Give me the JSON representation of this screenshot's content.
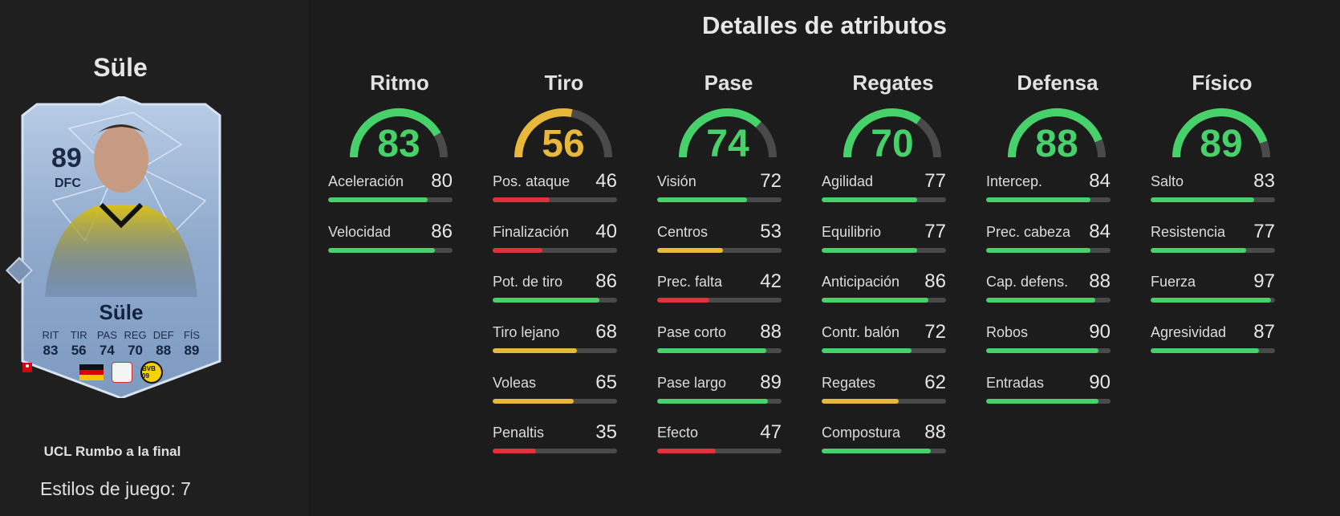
{
  "player": {
    "name": "Süle",
    "card_name": "Süle",
    "rating": "89",
    "position": "DFC",
    "version": "UCL Rumbo a la final",
    "playstyles": "Estilos de juego: 7",
    "card_stats": [
      {
        "label": "RIT",
        "value": "83"
      },
      {
        "label": "TIR",
        "value": "56"
      },
      {
        "label": "PAS",
        "value": "74"
      },
      {
        "label": "REG",
        "value": "70"
      },
      {
        "label": "DEF",
        "value": "88"
      },
      {
        "label": "FÍS",
        "value": "89"
      }
    ],
    "club_badge_text": "BVB 09"
  },
  "title": "Detalles de atributos",
  "colors": {
    "green": "#47d16b",
    "yellow": "#e8b83a",
    "red": "#e0303c",
    "track": "#4a4a4a"
  },
  "categories": [
    {
      "name": "Ritmo",
      "value": 83,
      "attributes": [
        {
          "label": "Aceleración",
          "value": 80
        },
        {
          "label": "Velocidad",
          "value": 86
        }
      ]
    },
    {
      "name": "Tiro",
      "value": 56,
      "attributes": [
        {
          "label": "Pos. ataque",
          "value": 46
        },
        {
          "label": "Finalización",
          "value": 40
        },
        {
          "label": "Pot. de tiro",
          "value": 86
        },
        {
          "label": "Tiro lejano",
          "value": 68
        },
        {
          "label": "Voleas",
          "value": 65
        },
        {
          "label": "Penaltis",
          "value": 35
        }
      ]
    },
    {
      "name": "Pase",
      "value": 74,
      "attributes": [
        {
          "label": "Visión",
          "value": 72
        },
        {
          "label": "Centros",
          "value": 53
        },
        {
          "label": "Prec. falta",
          "value": 42
        },
        {
          "label": "Pase corto",
          "value": 88
        },
        {
          "label": "Pase largo",
          "value": 89
        },
        {
          "label": "Efecto",
          "value": 47
        }
      ]
    },
    {
      "name": "Regates",
      "value": 70,
      "attributes": [
        {
          "label": "Agilidad",
          "value": 77
        },
        {
          "label": "Equilibrio",
          "value": 77
        },
        {
          "label": "Anticipación",
          "value": 86
        },
        {
          "label": "Contr. balón",
          "value": 72
        },
        {
          "label": "Regates",
          "value": 62
        },
        {
          "label": "Compostura",
          "value": 88
        }
      ]
    },
    {
      "name": "Defensa",
      "value": 88,
      "attributes": [
        {
          "label": "Intercep.",
          "value": 84
        },
        {
          "label": "Prec. cabeza",
          "value": 84
        },
        {
          "label": "Cap. defens.",
          "value": 88
        },
        {
          "label": "Robos",
          "value": 90
        },
        {
          "label": "Entradas",
          "value": 90
        }
      ]
    },
    {
      "name": "Físico",
      "value": 89,
      "attributes": [
        {
          "label": "Salto",
          "value": 83
        },
        {
          "label": "Resistencia",
          "value": 77
        },
        {
          "label": "Fuerza",
          "value": 97
        },
        {
          "label": "Agresividad",
          "value": 87
        }
      ]
    }
  ]
}
